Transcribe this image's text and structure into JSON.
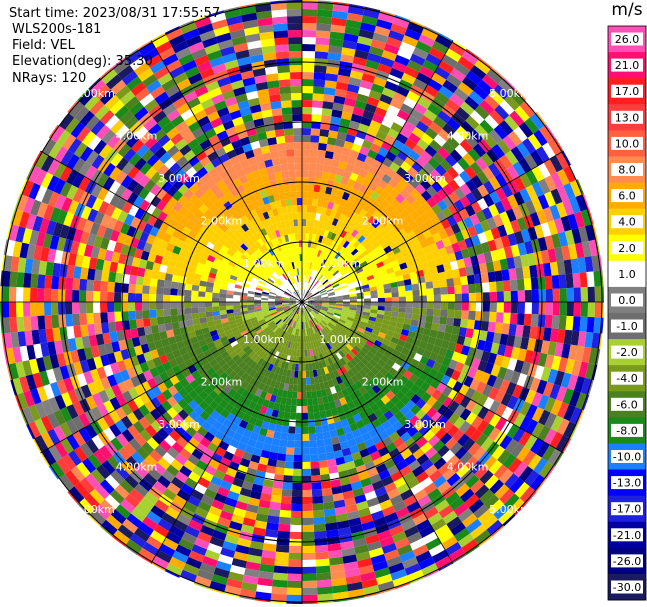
{
  "header": {
    "start_time": "Start time: 2023/08/31 17:55:57",
    "site": "WLS200s-181",
    "field": "Field: VEL",
    "elevation": "Elevation(deg): 35.30",
    "nrays": "NRays: 120"
  },
  "colorbar": {
    "unit": "m/s",
    "ticks": [
      "26.0",
      "21.0",
      "17.0",
      "13.0",
      "10.0",
      "8.0",
      "6.0",
      "4.0",
      "2.0",
      "1.0",
      "0.0",
      "-1.0",
      "-2.0",
      "-4.0",
      "-6.0",
      "-8.0",
      "-10.0",
      "-13.0",
      "-17.0",
      "-21.0",
      "-26.0",
      "-30.0"
    ],
    "colors": [
      "#ff4fb6",
      "#ff0f6e",
      "#ff1f1f",
      "#ff3d3d",
      "#ff6040",
      "#ff8a52",
      "#ffab00",
      "#ffd000",
      "#ffff00",
      "#ffffff",
      "#808080",
      "#6e6e6e",
      "#a8d030",
      "#7a9a1e",
      "#4a8020",
      "#1a8a1a",
      "#1a80ff",
      "#0000ff",
      "#2020e0",
      "#0000a0",
      "#000080",
      "#1a1a60"
    ]
  },
  "chart_data": {
    "type": "ppi-polar",
    "title": "",
    "field": "VEL",
    "units": "m/s",
    "elevation_deg": 35.3,
    "n_rays": 120,
    "range_ring_labels": [
      "1.00km",
      "2.00km",
      "3.00km",
      "4.00km",
      "5.00km"
    ],
    "range_rings_km": [
      1.0,
      2.0,
      3.0,
      4.0,
      5.0
    ],
    "radial_profile": {
      "range_km": [
        0.0,
        1.0,
        2.0,
        2.6
      ],
      "north_velocity_ms": [
        1.0,
        4.0,
        8.0,
        10.0
      ],
      "south_velocity_ms": [
        -1.0,
        -4.0,
        -8.0,
        -10.0
      ]
    },
    "valid_data_max_range_km": 2.6,
    "noise_beyond_range": true,
    "azimuth_grid_deg": [
      0,
      30,
      60,
      90,
      120,
      150,
      180,
      210,
      240,
      270,
      300,
      330
    ]
  }
}
